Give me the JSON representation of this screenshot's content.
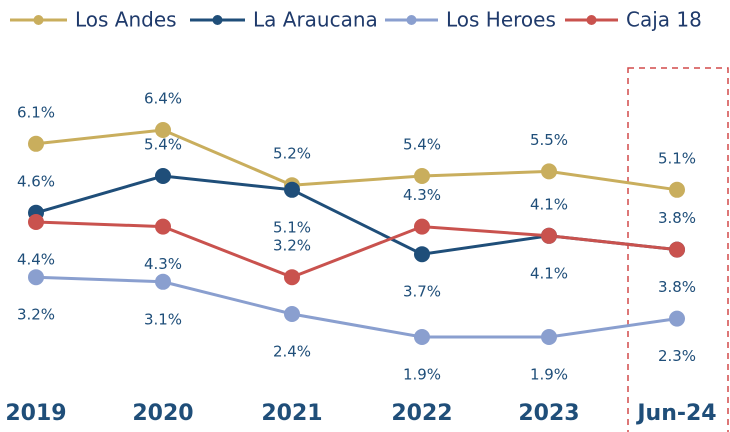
{
  "chart_data": {
    "type": "line",
    "categories": [
      "2019",
      "2020",
      "2021",
      "2022",
      "2023",
      "Jun-24"
    ],
    "series": [
      {
        "name": "Los Andes",
        "color": "#c9ae5d",
        "values": [
          6.1,
          6.4,
          5.2,
          5.4,
          5.5,
          5.1
        ],
        "value_labels": [
          "6.1%",
          "6.4%",
          "5.2%",
          "5.4%",
          "5.5%",
          "5.1%"
        ]
      },
      {
        "name": "La Araucana",
        "color": "#1f4e79",
        "values": [
          4.6,
          5.4,
          5.1,
          3.7,
          4.1,
          3.8
        ],
        "value_labels": [
          "4.6%",
          "5.4%",
          "5.1%",
          "3.7%",
          "4.1%",
          "3.8%"
        ]
      },
      {
        "name": "Los Heroes",
        "color": "#8a9fcf",
        "values": [
          3.2,
          3.1,
          2.4,
          1.9,
          1.9,
          2.3
        ],
        "value_labels": [
          "3.2%",
          "3.1%",
          "2.4%",
          "1.9%",
          "1.9%",
          "2.3%"
        ]
      },
      {
        "name": "Caja 18",
        "color": "#c9524e",
        "values": [
          4.4,
          4.3,
          3.2,
          4.3,
          4.1,
          3.8
        ],
        "value_labels": [
          "4.4%",
          "4.3%",
          "3.2%",
          "4.3%",
          "4.1%",
          "3.8%"
        ]
      }
    ]
  }
}
